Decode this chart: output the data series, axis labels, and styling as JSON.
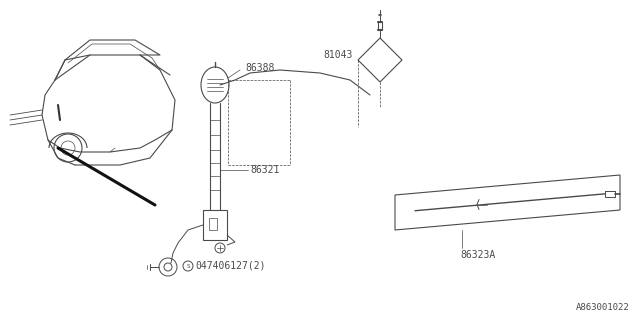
{
  "bg_color": "#ffffff",
  "line_color": "#4a4a4a",
  "label_color": "#4a4a4a",
  "figsize": [
    6.4,
    3.2
  ],
  "dpi": 100,
  "labels": {
    "part1": "86388",
    "part2": "86321",
    "part3": "81043",
    "part4": "86323A",
    "part5": "047406127(2)",
    "watermark": "A863001022"
  },
  "label_fontsize": 7,
  "watermark_fontsize": 6.5,
  "lw": 0.7
}
